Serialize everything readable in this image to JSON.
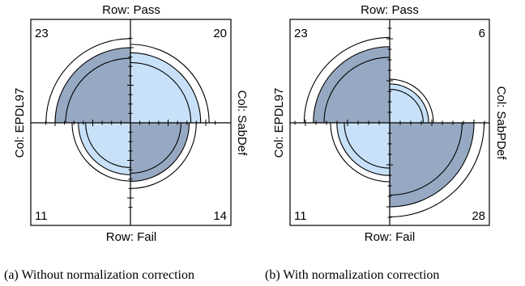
{
  "chart_data": [
    {
      "type": "fourfold",
      "caption": "(a) Without normalization correction",
      "row_label_top": "Row: Pass",
      "row_label_bottom": "Row: Fail",
      "col_label_left": "Col: EPDL97",
      "col_label_right": "Col: SabDef",
      "cells": [
        {
          "quadrant": "top-left",
          "row": "Pass",
          "col": "EPDL97",
          "count": 23
        },
        {
          "quadrant": "top-right",
          "row": "Pass",
          "col": "SabDef",
          "count": 20
        },
        {
          "quadrant": "bottom-left",
          "row": "Fail",
          "col": "EPDL97",
          "count": 11
        },
        {
          "quadrant": "bottom-right",
          "row": "Fail",
          "col": "SabDef",
          "count": 14
        }
      ]
    },
    {
      "type": "fourfold",
      "caption": "(b) With normalization correction",
      "row_label_top": "Row: Pass",
      "row_label_bottom": "Row: Fail",
      "col_label_left": "Col: EPDL97",
      "col_label_right": "Col: SabPDef",
      "cells": [
        {
          "quadrant": "top-left",
          "row": "Pass",
          "col": "EPDL97",
          "count": 23
        },
        {
          "quadrant": "top-right",
          "row": "Pass",
          "col": "SabPDef",
          "count": 6
        },
        {
          "quadrant": "bottom-left",
          "row": "Fail",
          "col": "EPDL97",
          "count": 11
        },
        {
          "quadrant": "bottom-right",
          "row": "Fail",
          "col": "SabPDef",
          "count": 28
        }
      ]
    }
  ],
  "colors": {
    "dark_fill": "#97a9c2",
    "light_fill": "#c8e1f8",
    "stroke": "#000000"
  }
}
